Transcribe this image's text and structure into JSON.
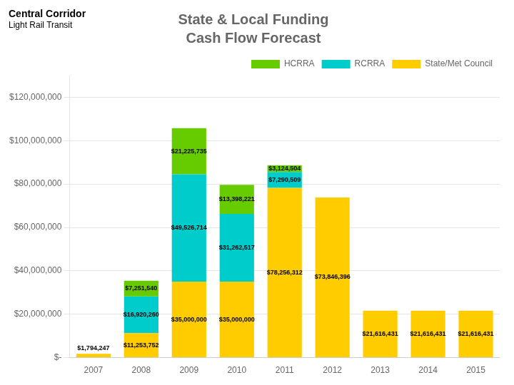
{
  "chart_data": {
    "type": "bar",
    "title": "State & Local Funding",
    "subtitle": "Cash Flow Forecast",
    "annotations": [
      "Central Corridor",
      "Light Rail Transit"
    ],
    "categories": [
      "2007",
      "2008",
      "2009",
      "2010",
      "2011",
      "2012",
      "2013",
      "2014",
      "2015"
    ],
    "stacked": true,
    "data_labels": true,
    "series": [
      {
        "name": "State/Met Council",
        "color": "#ffcc00",
        "values": [
          1794247,
          11253752,
          35000000,
          35000000,
          78256312,
          73846396,
          21616431,
          21616431,
          21616431
        ],
        "value_labels": [
          "$1,794,247",
          "$11,253,752",
          "$35,000,000",
          "$35,000,000",
          "$78,256,312",
          "$73,846,396",
          "$21,616,431",
          "$21,616,431",
          "$21,616,431"
        ]
      },
      {
        "name": "RCRRA",
        "color": "#00cccc",
        "values": [
          0,
          16920260,
          49526714,
          31262517,
          7290509,
          0,
          0,
          0,
          0
        ],
        "value_labels": [
          null,
          "$16,920,260",
          "$49,526,714",
          "$31,262,517",
          "$7,290,509",
          null,
          null,
          null,
          null
        ]
      },
      {
        "name": "HCRRA",
        "color": "#66cc00",
        "values": [
          0,
          7251540,
          21225735,
          13398221,
          3124504,
          0,
          0,
          0,
          0
        ],
        "value_labels": [
          null,
          "$7,251,540",
          "$21,225,735",
          "$13,398,221",
          "$3,124,504",
          null,
          null,
          null,
          null
        ]
      }
    ],
    "ylim": [
      0,
      130000000
    ],
    "yticks": [
      {
        "value": 0,
        "label": "$-"
      },
      {
        "value": 20000000,
        "label": "$20,000,000"
      },
      {
        "value": 40000000,
        "label": "$40,000,000"
      },
      {
        "value": 60000000,
        "label": "$60,000,000"
      },
      {
        "value": 80000000,
        "label": "$80,000,000"
      },
      {
        "value": 100000000,
        "label": "$100,000,000"
      },
      {
        "value": 120000000,
        "label": "$120,000,000"
      }
    ],
    "grid": true,
    "legend": "upper right"
  }
}
